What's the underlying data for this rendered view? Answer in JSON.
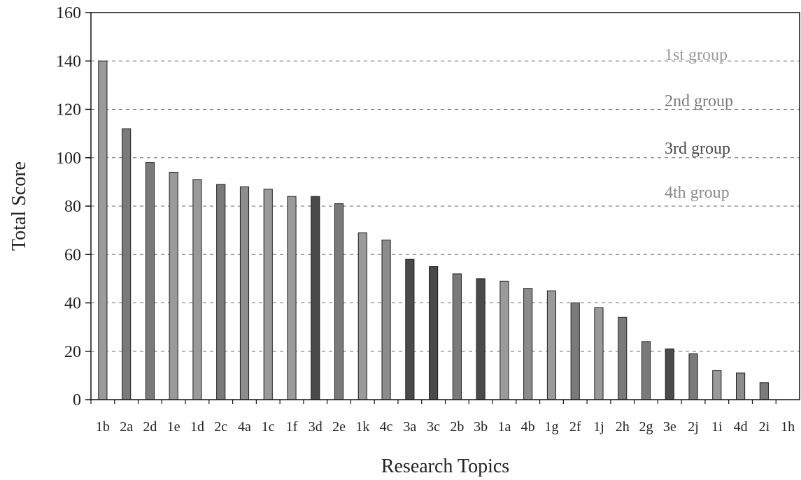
{
  "chart_data": {
    "type": "bar",
    "xlabel": "Research Topics",
    "ylabel": "Total Score",
    "ylim": [
      0,
      160
    ],
    "yticks": [
      0,
      20,
      40,
      60,
      80,
      100,
      120,
      140,
      160
    ],
    "grid": "horizontal dashed",
    "legend_position": "top-right",
    "categories": [
      "1b",
      "2a",
      "2d",
      "1e",
      "1d",
      "2c",
      "4a",
      "1c",
      "1f",
      "3d",
      "2e",
      "1k",
      "4c",
      "3a",
      "3c",
      "2b",
      "3b",
      "1a",
      "4b",
      "1g",
      "2f",
      "1j",
      "2h",
      "2g",
      "3e",
      "2j",
      "1i",
      "4d",
      "2i",
      "1h"
    ],
    "values": [
      140,
      112,
      98,
      94,
      91,
      89,
      88,
      87,
      84,
      84,
      81,
      69,
      66,
      58,
      55,
      52,
      50,
      49,
      46,
      45,
      40,
      38,
      34,
      24,
      21,
      19,
      12,
      11,
      7,
      0
    ],
    "groups": [
      1,
      2,
      2,
      1,
      1,
      2,
      4,
      1,
      1,
      3,
      2,
      1,
      4,
      3,
      3,
      2,
      3,
      1,
      4,
      1,
      2,
      1,
      2,
      2,
      3,
      2,
      1,
      4,
      2,
      1
    ],
    "legend": [
      {
        "label": "1st group",
        "color": "#9a9a9a"
      },
      {
        "label": "2nd group",
        "color": "#7a7a7a"
      },
      {
        "label": "3rd group",
        "color": "#4a4a4a"
      },
      {
        "label": "4th group",
        "color": "#8c8c8c"
      }
    ]
  }
}
